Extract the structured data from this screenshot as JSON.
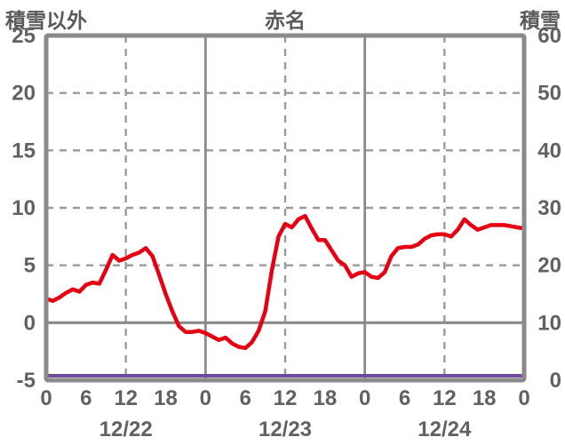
{
  "colors": {
    "background": "#ffffff",
    "frame": "#8a8a8a",
    "grid": "#9a9a9a",
    "tick_label": "#616161",
    "header_label": "#5a5a5a",
    "red_series": "#e60012",
    "purple_series": "#6f4b9e"
  },
  "header": {
    "left_axis_title": "積雪以外",
    "station_title": "赤名",
    "right_axis_title": "積雪"
  },
  "chart_data": {
    "type": "line",
    "title": "赤名",
    "legend_position": "none",
    "left_axis": {
      "label": "積雪以外",
      "min": -5,
      "max": 25,
      "ticks": [
        25,
        20,
        15,
        10,
        5,
        0,
        -5
      ]
    },
    "right_axis": {
      "label": "積雪",
      "min": 0,
      "max": 60,
      "ticks": [
        60,
        50,
        40,
        30,
        20,
        10,
        0
      ]
    },
    "x_axis": {
      "total_hours": 72,
      "hour_tick_positions": [
        0,
        6,
        12,
        18,
        24,
        30,
        36,
        42,
        48,
        54,
        60,
        66,
        72
      ],
      "hour_tick_labels": [
        "0",
        "6",
        "12",
        "18",
        "0",
        "6",
        "12",
        "18",
        "0",
        "6",
        "12",
        "18",
        "0"
      ],
      "date_labels": [
        "12/22",
        "12/23",
        "12/24"
      ],
      "date_positions_hours": [
        12,
        36,
        60
      ],
      "dashed_gridline_hours": [
        12,
        36,
        60
      ],
      "solid_gridline_hours": [
        24,
        48
      ]
    },
    "gridlines": {
      "grid_on": true,
      "dashed_left_values": [
        20,
        15,
        10,
        5
      ],
      "solid_left_values": [
        0
      ]
    },
    "series": [
      {
        "name": "積雪以外",
        "axis": "left",
        "color": "#e60012",
        "x_step_hours": 1,
        "x_hours": [
          0,
          1,
          2,
          3,
          4,
          5,
          6,
          7,
          8,
          9,
          10,
          11,
          12,
          13,
          14,
          15,
          16,
          17,
          18,
          19,
          20,
          21,
          22,
          23,
          24,
          25,
          26,
          27,
          28,
          29,
          30,
          31,
          32,
          33,
          34,
          35,
          36,
          37,
          38,
          39,
          40,
          41,
          42,
          43,
          44,
          45,
          46,
          47,
          48,
          49,
          50,
          51,
          52,
          53,
          54,
          55,
          56,
          57,
          58,
          59,
          60,
          61,
          62,
          63,
          64,
          65,
          66,
          67,
          68,
          69,
          70,
          71,
          72
        ],
        "values": [
          2.1,
          1.9,
          2.2,
          2.6,
          2.9,
          2.7,
          3.3,
          3.5,
          3.4,
          4.6,
          5.9,
          5.4,
          5.6,
          5.9,
          6.1,
          6.5,
          5.8,
          4.2,
          2.5,
          1.0,
          -0.3,
          -0.8,
          -0.8,
          -0.7,
          -0.9,
          -1.2,
          -1.5,
          -1.3,
          -1.8,
          -2.1,
          -2.2,
          -1.7,
          -0.7,
          1.0,
          4.6,
          7.5,
          8.6,
          8.3,
          9.0,
          9.3,
          8.2,
          7.2,
          7.2,
          6.3,
          5.4,
          5.0,
          4.0,
          4.3,
          4.4,
          4.0,
          3.9,
          4.4,
          5.8,
          6.5,
          6.6,
          6.6,
          6.8,
          7.3,
          7.6,
          7.7,
          7.7,
          7.5,
          8.1,
          9.0,
          8.5,
          8.1,
          8.3,
          8.5,
          8.5,
          8.5,
          8.4,
          8.3,
          8.2
        ]
      },
      {
        "name": "積雪",
        "axis": "right",
        "color": "#6f4b9e",
        "x_hours": [
          0,
          72
        ],
        "values": [
          0,
          0
        ]
      }
    ]
  }
}
